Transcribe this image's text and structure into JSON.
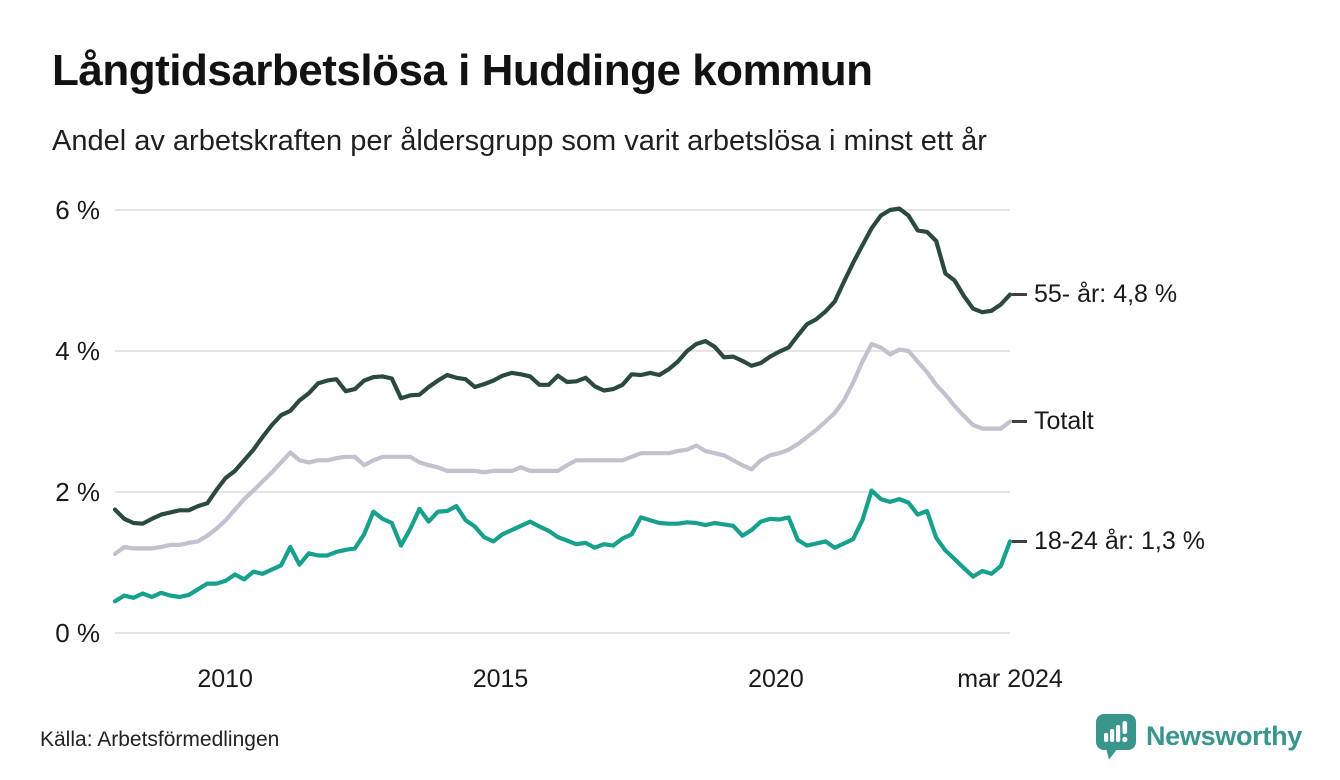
{
  "header": {
    "title": "Långtidsarbetslösa i Huddinge kommun",
    "subtitle": "Andel av arbetskraften per åldersgrupp som varit arbetslösa i minst ett år"
  },
  "footer": {
    "source": "Källa: Arbetsförmedlingen",
    "brand": "Newsworthy"
  },
  "colors": {
    "grid": "#e5e5e8",
    "axis_text": "#1a1a1a",
    "legend_tick": "#3f3f3f",
    "brand_teal": "#3a968c",
    "series_55": "#2a4a40",
    "series_totalt": "#c2c1ce",
    "series_18_24": "#17a08c"
  },
  "chart_data": {
    "type": "line",
    "title": "Långtidsarbetslösa i Huddinge kommun",
    "subtitle": "Andel av arbetskraften per åldersgrupp som varit arbetslösa i minst ett år",
    "xlabel": "",
    "ylabel": "",
    "grid": true,
    "legend_position": "right-of-line-ends",
    "x_start": 2008.0,
    "x_end": 2024.25,
    "ylim": [
      0,
      6.3
    ],
    "x_ticks": [
      {
        "value": 2010,
        "label": "2010"
      },
      {
        "value": 2015,
        "label": "2015"
      },
      {
        "value": 2020,
        "label": "2020"
      },
      {
        "value": 2024.25,
        "label": "mar 2024"
      }
    ],
    "y_ticks": [
      {
        "value": 0,
        "label": "0 %"
      },
      {
        "value": 2,
        "label": "2 %"
      },
      {
        "value": 4,
        "label": "4 %"
      },
      {
        "value": 6,
        "label": "6 %"
      }
    ],
    "series": [
      {
        "key": "55-ar",
        "name": "55- år",
        "label": "55- år: 4,8 %",
        "last_value_label": "4,8 %",
        "color": "#2a4a40",
        "values": [
          1.75,
          1.62,
          1.56,
          1.55,
          1.62,
          1.68,
          1.71,
          1.74,
          1.74,
          1.8,
          1.84,
          2.03,
          2.2,
          2.3,
          2.45,
          2.6,
          2.78,
          2.95,
          3.09,
          3.15,
          3.3,
          3.4,
          3.54,
          3.58,
          3.6,
          3.43,
          3.46,
          3.58,
          3.63,
          3.64,
          3.61,
          3.33,
          3.37,
          3.38,
          3.49,
          3.58,
          3.66,
          3.62,
          3.6,
          3.49,
          3.53,
          3.58,
          3.65,
          3.69,
          3.67,
          3.64,
          3.52,
          3.52,
          3.65,
          3.56,
          3.57,
          3.62,
          3.5,
          3.44,
          3.46,
          3.52,
          3.67,
          3.66,
          3.69,
          3.66,
          3.74,
          3.85,
          4.0,
          4.1,
          4.14,
          4.06,
          3.91,
          3.92,
          3.86,
          3.79,
          3.83,
          3.92,
          3.99,
          4.05,
          4.22,
          4.38,
          4.45,
          4.56,
          4.7,
          4.98,
          5.25,
          5.5,
          5.74,
          5.92,
          6.0,
          6.02,
          5.92,
          5.71,
          5.69,
          5.56,
          5.1,
          5.0,
          4.78,
          4.6,
          4.55,
          4.57,
          4.66,
          4.8
        ]
      },
      {
        "key": "totalt",
        "name": "Totalt",
        "label": "Totalt",
        "last_value_label": "",
        "color": "#c2c1ce",
        "values": [
          1.12,
          1.22,
          1.2,
          1.2,
          1.2,
          1.22,
          1.25,
          1.25,
          1.28,
          1.3,
          1.38,
          1.48,
          1.6,
          1.75,
          1.9,
          2.02,
          2.15,
          2.28,
          2.42,
          2.56,
          2.45,
          2.42,
          2.45,
          2.45,
          2.48,
          2.5,
          2.5,
          2.38,
          2.45,
          2.5,
          2.5,
          2.5,
          2.5,
          2.42,
          2.38,
          2.35,
          2.3,
          2.3,
          2.3,
          2.3,
          2.28,
          2.3,
          2.3,
          2.3,
          2.35,
          2.3,
          2.3,
          2.3,
          2.3,
          2.38,
          2.45,
          2.45,
          2.45,
          2.45,
          2.45,
          2.45,
          2.5,
          2.55,
          2.55,
          2.55,
          2.55,
          2.58,
          2.6,
          2.66,
          2.58,
          2.55,
          2.52,
          2.45,
          2.38,
          2.32,
          2.45,
          2.52,
          2.55,
          2.6,
          2.68,
          2.78,
          2.88,
          3.0,
          3.12,
          3.3,
          3.55,
          3.85,
          4.1,
          4.05,
          3.95,
          4.02,
          4.0,
          3.85,
          3.7,
          3.52,
          3.38,
          3.22,
          3.08,
          2.95,
          2.9,
          2.9,
          2.9,
          3.0
        ]
      },
      {
        "key": "18-24-ar",
        "name": "18-24 år",
        "label": "18-24 år: 1,3 %",
        "last_value_label": "1,3 %",
        "color": "#17a08c",
        "values": [
          0.45,
          0.53,
          0.5,
          0.56,
          0.51,
          0.57,
          0.53,
          0.51,
          0.54,
          0.62,
          0.7,
          0.7,
          0.74,
          0.83,
          0.76,
          0.87,
          0.84,
          0.9,
          0.96,
          1.22,
          0.97,
          1.13,
          1.1,
          1.1,
          1.15,
          1.18,
          1.2,
          1.4,
          1.72,
          1.62,
          1.56,
          1.24,
          1.48,
          1.76,
          1.58,
          1.72,
          1.73,
          1.8,
          1.6,
          1.51,
          1.36,
          1.3,
          1.4,
          1.46,
          1.52,
          1.58,
          1.51,
          1.45,
          1.36,
          1.31,
          1.26,
          1.28,
          1.21,
          1.26,
          1.24,
          1.34,
          1.4,
          1.64,
          1.6,
          1.56,
          1.55,
          1.55,
          1.57,
          1.56,
          1.53,
          1.56,
          1.54,
          1.52,
          1.38,
          1.46,
          1.58,
          1.62,
          1.61,
          1.64,
          1.32,
          1.24,
          1.27,
          1.3,
          1.21,
          1.27,
          1.33,
          1.6,
          2.02,
          1.9,
          1.86,
          1.9,
          1.85,
          1.68,
          1.73,
          1.35,
          1.17,
          1.05,
          0.92,
          0.8,
          0.88,
          0.84,
          0.95,
          1.3
        ]
      }
    ]
  }
}
